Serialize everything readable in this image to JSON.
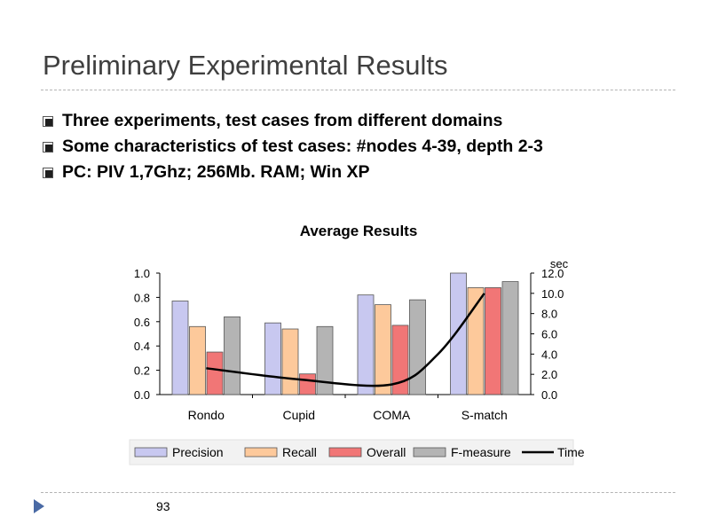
{
  "slide": {
    "title": "Preliminary Experimental Results",
    "bullets": [
      "Three experiments, test cases from different domains",
      "Some characteristics of test cases: #nodes 4-39, depth 2-3",
      "PC: PIV 1,7Ghz; 256Mb. RAM; Win XP"
    ],
    "page_number": "93"
  },
  "chart_data": {
    "type": "bar",
    "title": "Average Results",
    "categories": [
      "Rondo",
      "Cupid",
      "COMA",
      "S-match"
    ],
    "series": [
      {
        "name": "Precision",
        "values": [
          0.77,
          0.59,
          0.82,
          1.0
        ],
        "color": "#c8c8f0"
      },
      {
        "name": "Recall",
        "values": [
          0.56,
          0.54,
          0.74,
          0.88
        ],
        "color": "#fdc99b"
      },
      {
        "name": "Overall",
        "values": [
          0.35,
          0.17,
          0.57,
          0.88
        ],
        "color": "#f17676"
      },
      {
        "name": "F-measure",
        "values": [
          0.64,
          0.56,
          0.78,
          0.93
        ],
        "color": "#b4b4b4"
      }
    ],
    "line_series": {
      "name": "Time",
      "x": [
        0,
        1,
        2,
        2.5,
        3
      ],
      "values": [
        2.6,
        1.5,
        1.0,
        4.0,
        10.0
      ],
      "color": "#000000"
    },
    "left_axis": {
      "ylim": [
        0,
        1.0
      ],
      "ticks": [
        "0.0",
        "0.2",
        "0.4",
        "0.6",
        "0.8",
        "1.0"
      ]
    },
    "right_axis": {
      "label": "sec",
      "ylim": [
        0,
        12.0
      ],
      "ticks": [
        "0.0",
        "2.0",
        "4.0",
        "6.0",
        "8.0",
        "10.0",
        "12.0"
      ]
    },
    "legend_position": "bottom",
    "grid": false
  }
}
